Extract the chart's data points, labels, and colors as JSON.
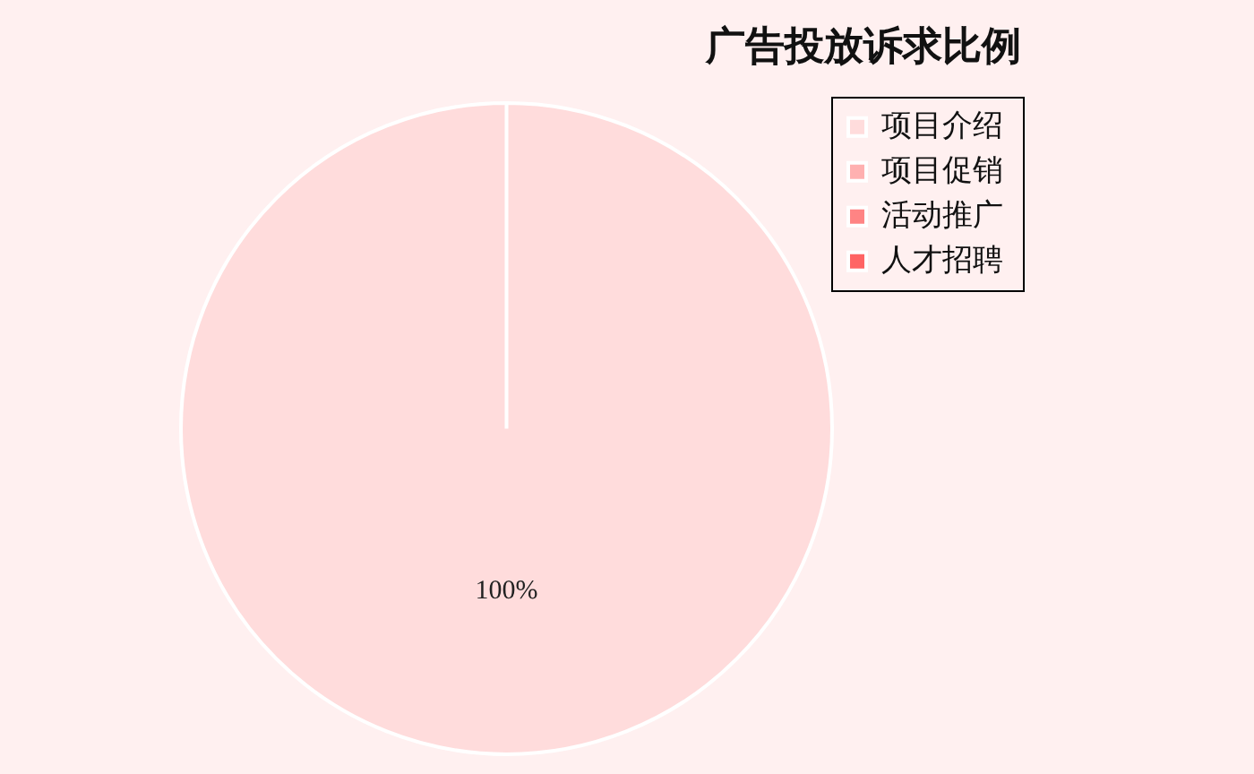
{
  "chart_data": {
    "type": "pie",
    "title": "广告投放诉求比例",
    "categories": [
      "项目介绍",
      "项目促销",
      "活动推广",
      "人才招聘"
    ],
    "values": [
      100,
      0,
      0,
      0
    ],
    "colors": [
      "#ffdcdc",
      "#ffb0b0",
      "#ff8484",
      "#ff6464"
    ],
    "value_labels": [
      "100%",
      null,
      null,
      null
    ],
    "legend": "top right"
  }
}
